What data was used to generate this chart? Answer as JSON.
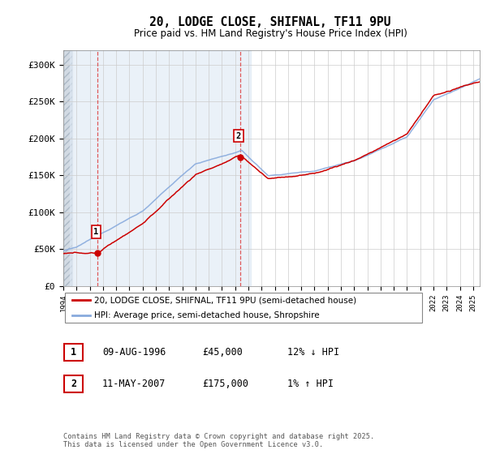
{
  "title": "20, LODGE CLOSE, SHIFNAL, TF11 9PU",
  "subtitle": "Price paid vs. HM Land Registry's House Price Index (HPI)",
  "sale1_date": "09-AUG-1996",
  "sale1_price": 45000,
  "sale1_hpi_diff": "12% ↓ HPI",
  "sale2_date": "11-MAY-2007",
  "sale2_price": 175000,
  "sale2_hpi_diff": "1% ↑ HPI",
  "legend_entry1": "20, LODGE CLOSE, SHIFNAL, TF11 9PU (semi-detached house)",
  "legend_entry2": "HPI: Average price, semi-detached house, Shropshire",
  "footer": "Contains HM Land Registry data © Crown copyright and database right 2025.\nThis data is licensed under the Open Government Licence v3.0.",
  "line_color_property": "#cc0000",
  "line_color_hpi": "#88aadd",
  "bg_shade_color": "#dde8f4",
  "hatch_color": "#bbccdd",
  "ylim": [
    0,
    320000
  ],
  "ylabel_ticks": [
    0,
    50000,
    100000,
    150000,
    200000,
    250000,
    300000
  ],
  "ylabel_labels": [
    "£0",
    "£50K",
    "£100K",
    "£150K",
    "£200K",
    "£250K",
    "£300K"
  ],
  "sale1_year": 1996.6,
  "sale2_year": 2007.37,
  "xmin": 1994.0,
  "xmax": 2025.5
}
